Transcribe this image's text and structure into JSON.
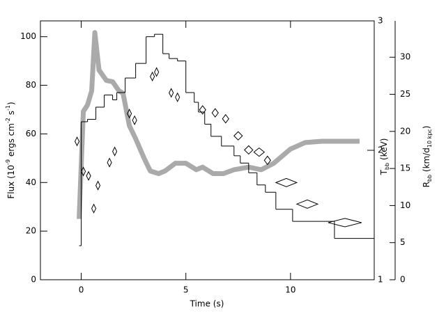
{
  "chart_data": {
    "type": "line",
    "xlabel": "Time (s)",
    "ylabel": [
      "Flux (10",
      "-9",
      " ergs cm",
      "-2",
      " s",
      "-1",
      ")"
    ],
    "y2label": [
      "T",
      "bb",
      " (keV)"
    ],
    "y3label": [
      "R",
      "bb",
      " (km/d",
      "10 kpc",
      ")"
    ],
    "xlim": [
      -1.95,
      14
    ],
    "xticks": [
      0,
      5,
      10
    ],
    "ylim": [
      0,
      106.5
    ],
    "yticks": [
      0,
      20,
      40,
      60,
      80,
      100
    ],
    "y2lim": [
      1,
      3
    ],
    "y2ticks": [
      1,
      2,
      3
    ],
    "y3lim": [
      0,
      34.9
    ],
    "y3ticks": [
      0,
      5,
      10,
      15,
      20,
      25,
      30
    ],
    "series": [
      {
        "style": "step",
        "color": "#000000",
        "bins": [
          -0.1,
          0,
          0.3,
          0.7,
          1.1,
          1.5,
          1.7,
          2.1,
          2.6,
          3.1,
          3.5,
          3.9,
          4.2,
          4.6,
          5.0,
          5.4,
          5.6,
          5.9,
          6.2,
          6.7,
          7.3,
          7.6,
          8.0,
          8.4,
          8.8,
          9.3,
          10.1,
          11.1,
          12.1,
          14
        ],
        "values": [
          14,
          65,
          66,
          71,
          76,
          74,
          77,
          83,
          89,
          100,
          101,
          93,
          91,
          90,
          77,
          73,
          69,
          64,
          59,
          55,
          51,
          48,
          44,
          39,
          36,
          29,
          24,
          24,
          17
        ]
      },
      {
        "style": "band",
        "color": "#aaaaaa",
        "axis": "y2",
        "x": [
          -0.1,
          0.1,
          0.3,
          0.5,
          0.65,
          0.85,
          1.2,
          1.5,
          1.8,
          2.0,
          2.3,
          2.6,
          3.0,
          3.3,
          3.7,
          4.0,
          4.5,
          5.0,
          5.5,
          5.8,
          6.3,
          6.8,
          7.3,
          8.0,
          8.6,
          9.2,
          10.0,
          10.7,
          11.5,
          12.5,
          13.3
        ],
        "values": [
          1.47,
          2.3,
          2.35,
          2.46,
          2.91,
          2.62,
          2.54,
          2.53,
          2.46,
          2.44,
          2.19,
          2.09,
          1.94,
          1.84,
          1.82,
          1.84,
          1.9,
          1.9,
          1.85,
          1.87,
          1.82,
          1.82,
          1.85,
          1.87,
          1.85,
          1.9,
          2.01,
          2.06,
          2.07,
          2.07,
          2.07
        ]
      },
      {
        "style": "diamond",
        "color": "#000000",
        "axis": "y3",
        "x": [
          -0.2,
          0.1,
          0.35,
          0.6,
          0.8,
          1.35,
          1.6,
          2.3,
          2.55,
          3.4,
          3.6,
          4.3,
          4.6,
          5.8,
          6.4,
          6.9,
          7.5,
          8.0,
          8.5,
          8.9,
          9.8,
          10.8,
          12.6
        ],
        "values": [
          18.65,
          14.6,
          14.0,
          9.6,
          12.7,
          15.8,
          17.3,
          22.4,
          21.5,
          27.4,
          28.0,
          25.2,
          24.6,
          22.9,
          22.5,
          21.7,
          19.4,
          17.5,
          17.2,
          16.1,
          13.1,
          10.2,
          7.7
        ],
        "xerr": [
          0.1,
          0.1,
          0.1,
          0.1,
          0.05,
          0.1,
          0.1,
          0.1,
          0.1,
          0.1,
          0.1,
          0.1,
          0.1,
          0.15,
          0.15,
          0.15,
          0.2,
          0.2,
          0.25,
          0.15,
          0.5,
          0.5,
          0.8
        ]
      }
    ]
  }
}
